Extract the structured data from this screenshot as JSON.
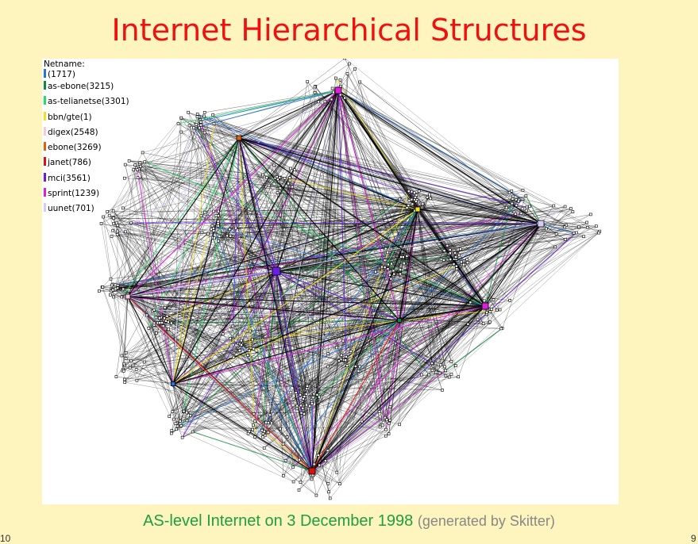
{
  "title": "Internet Hierarchical Structures",
  "legend": {
    "heading": "Netname:",
    "items": [
      {
        "label": "(1717)",
        "color": "#2277dd"
      },
      {
        "label": "as-ebone(3215)",
        "color": "#0b8a3a"
      },
      {
        "label": "as-telianetse(3301)",
        "color": "#22dd66"
      },
      {
        "label": "bbn/gte(1)",
        "color": "#f4e020"
      },
      {
        "label": "digex(2548)",
        "color": "#f7c8d6"
      },
      {
        "label": "ebone(3269)",
        "color": "#e06010"
      },
      {
        "label": "janet(786)",
        "color": "#dd1010"
      },
      {
        "label": "mci(3561)",
        "color": "#6a1ee0"
      },
      {
        "label": "sprint(1239)",
        "color": "#e01ee0"
      },
      {
        "label": "uunet(701)",
        "color": "#d4ccf4"
      }
    ]
  },
  "caption": {
    "main": "AS-level Internet on 3 December 1998",
    "sub": "(generated by Skitter)"
  },
  "page_left": "10",
  "page_right": "9"
}
